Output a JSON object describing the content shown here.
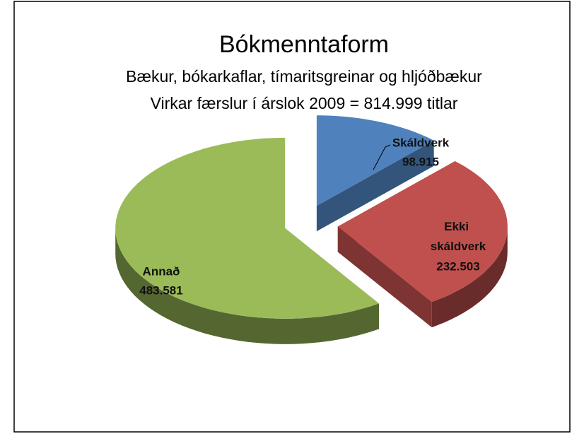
{
  "chart_data": {
    "type": "pie3d",
    "title": "Bókmenntaform",
    "subtitle": [
      "Bækur, bókarkaflar, tímaritsgreinar og hljóðbækur",
      "Virkar færslur í árslok 2009 = 814.999 titlar"
    ],
    "categories": [
      "Skáldverk",
      "Ekki skáldverk",
      "Annað"
    ],
    "values": [
      98915,
      232503,
      483581
    ],
    "value_labels": [
      "98.915",
      "232.503",
      "483.581"
    ],
    "colors": [
      "#4f81bd",
      "#c0504d",
      "#9bbb59"
    ]
  }
}
